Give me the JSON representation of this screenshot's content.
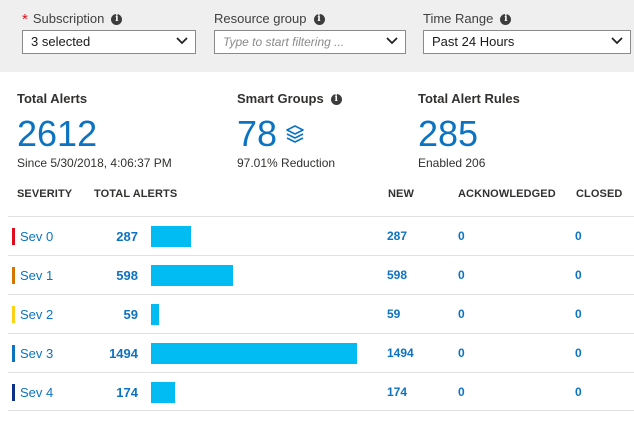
{
  "filters": {
    "subscription": {
      "label": "Subscription",
      "required_mark": "*",
      "value": "3 selected"
    },
    "resource_group": {
      "label": "Resource group",
      "placeholder": "Type to start filtering ..."
    },
    "time_range": {
      "label": "Time Range",
      "value": "Past 24 Hours"
    }
  },
  "summary": {
    "total_alerts": {
      "title": "Total Alerts",
      "value": "2612",
      "sub": "Since 5/30/2018, 4:06:37 PM"
    },
    "smart_groups": {
      "title": "Smart Groups",
      "value": "78",
      "sub": "97.01% Reduction"
    },
    "total_alert_rules": {
      "title": "Total Alert Rules",
      "value": "285",
      "sub": "Enabled 206"
    }
  },
  "table": {
    "headers": {
      "severity": "SEVERITY",
      "total": "TOTAL ALERTS",
      "new": "NEW",
      "acknowledged": "ACKNOWLEDGED",
      "closed": "CLOSED"
    },
    "bar_max": 1494,
    "rows": [
      {
        "severity": "Sev 0",
        "color": "#e00b1c",
        "total": "287",
        "total_value": 287,
        "new": "287",
        "acknowledged": "0",
        "closed": "0"
      },
      {
        "severity": "Sev 1",
        "color": "#d47500",
        "total": "598",
        "total_value": 598,
        "new": "598",
        "acknowledged": "0",
        "closed": "0"
      },
      {
        "severity": "Sev 2",
        "color": "#fcd116",
        "total": "59",
        "total_value": 59,
        "new": "59",
        "acknowledged": "0",
        "closed": "0"
      },
      {
        "severity": "Sev 3",
        "color": "#0c73c2",
        "total": "1494",
        "total_value": 1494,
        "new": "1494",
        "acknowledged": "0",
        "closed": "0"
      },
      {
        "severity": "Sev 4",
        "color": "#0b2f8a",
        "total": "174",
        "total_value": 174,
        "new": "174",
        "acknowledged": "0",
        "closed": "0"
      }
    ]
  },
  "colors": {
    "accent": "#0c73c2",
    "bar": "#00bcf2"
  }
}
